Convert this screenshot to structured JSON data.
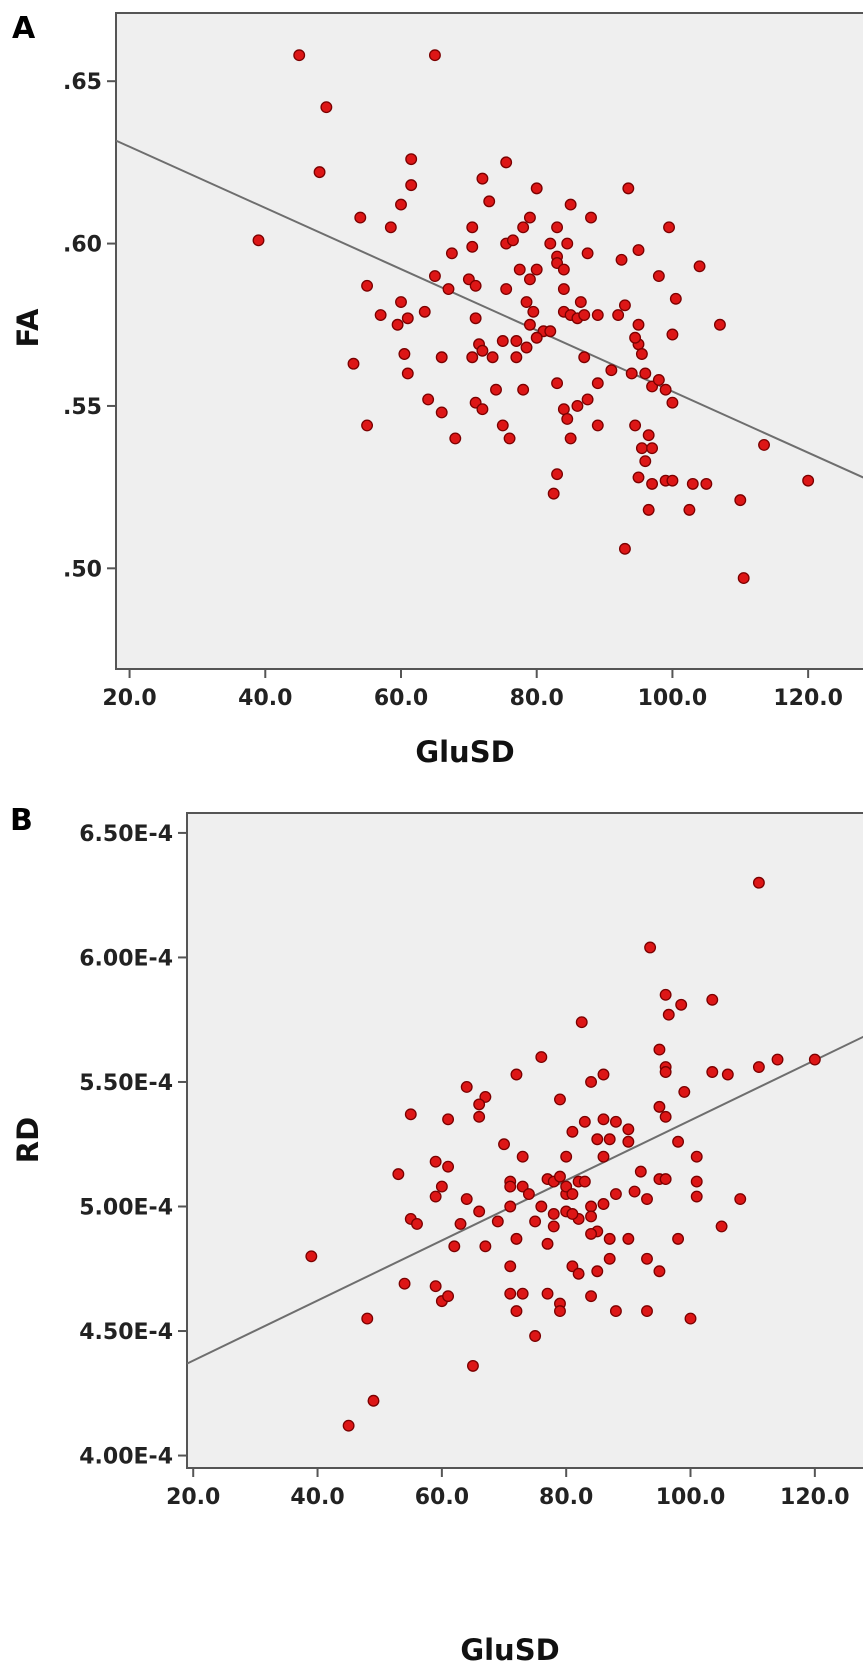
{
  "chart_data": [
    {
      "type": "scatter",
      "panel": "A",
      "xlabel": "GluSD",
      "ylabel": "FA",
      "xlim": [
        18,
        130
      ],
      "ylim": [
        0.469,
        0.671
      ],
      "xticks": [
        20,
        40,
        60,
        80,
        100,
        120
      ],
      "xtick_labels": [
        "20.0",
        "40.0",
        "60.0",
        "80.0",
        "100.0",
        "120.0"
      ],
      "yticks": [
        0.5,
        0.55,
        0.6,
        0.65
      ],
      "ytick_labels": [
        ".50",
        ".55",
        ".60",
        ".65"
      ],
      "fit_line": [
        [
          18,
          0.6317
        ],
        [
          130,
          0.5262
        ]
      ],
      "points": [
        [
          45,
          0.658
        ],
        [
          65,
          0.658
        ],
        [
          49,
          0.642
        ],
        [
          48,
          0.622
        ],
        [
          39,
          0.601
        ],
        [
          61.5,
          0.626
        ],
        [
          61.5,
          0.618
        ],
        [
          54,
          0.608
        ],
        [
          58.5,
          0.605
        ],
        [
          60,
          0.612
        ],
        [
          65,
          0.59
        ],
        [
          67.5,
          0.597
        ],
        [
          55,
          0.587
        ],
        [
          67,
          0.586
        ],
        [
          60,
          0.582
        ],
        [
          59.5,
          0.575
        ],
        [
          57,
          0.578
        ],
        [
          61,
          0.577
        ],
        [
          63.5,
          0.579
        ],
        [
          53,
          0.563
        ],
        [
          60.5,
          0.566
        ],
        [
          61,
          0.56
        ],
        [
          66,
          0.565
        ],
        [
          64,
          0.552
        ],
        [
          66,
          0.548
        ],
        [
          68,
          0.54
        ],
        [
          55,
          0.544
        ],
        [
          72,
          0.62
        ],
        [
          73,
          0.613
        ],
        [
          75.5,
          0.625
        ],
        [
          79,
          0.608
        ],
        [
          80,
          0.617
        ],
        [
          85,
          0.612
        ],
        [
          70.5,
          0.605
        ],
        [
          70.5,
          0.599
        ],
        [
          75.5,
          0.6
        ],
        [
          76.5,
          0.601
        ],
        [
          78,
          0.605
        ],
        [
          82,
          0.6
        ],
        [
          83,
          0.605
        ],
        [
          84.5,
          0.6
        ],
        [
          83,
          0.596
        ],
        [
          70,
          0.589
        ],
        [
          71,
          0.587
        ],
        [
          75.5,
          0.586
        ],
        [
          77.5,
          0.592
        ],
        [
          79,
          0.589
        ],
        [
          80,
          0.592
        ],
        [
          83,
          0.594
        ],
        [
          84,
          0.592
        ],
        [
          84,
          0.586
        ],
        [
          86.5,
          0.582
        ],
        [
          79.5,
          0.579
        ],
        [
          81,
          0.573
        ],
        [
          78.5,
          0.582
        ],
        [
          82,
          0.573
        ],
        [
          84,
          0.579
        ],
        [
          85,
          0.578
        ],
        [
          86,
          0.577
        ],
        [
          87,
          0.578
        ],
        [
          89,
          0.578
        ],
        [
          92,
          0.578
        ],
        [
          71,
          0.577
        ],
        [
          71.5,
          0.569
        ],
        [
          72,
          0.567
        ],
        [
          70.5,
          0.565
        ],
        [
          73.5,
          0.565
        ],
        [
          75,
          0.57
        ],
        [
          77,
          0.57
        ],
        [
          77,
          0.565
        ],
        [
          78.5,
          0.568
        ],
        [
          79,
          0.575
        ],
        [
          80,
          0.571
        ],
        [
          87.5,
          0.597
        ],
        [
          88,
          0.608
        ],
        [
          93.5,
          0.617
        ],
        [
          92.5,
          0.595
        ],
        [
          95,
          0.598
        ],
        [
          99.5,
          0.605
        ],
        [
          98,
          0.59
        ],
        [
          104,
          0.593
        ],
        [
          100.5,
          0.583
        ],
        [
          93,
          0.581
        ],
        [
          95,
          0.575
        ],
        [
          95,
          0.569
        ],
        [
          94.5,
          0.571
        ],
        [
          95.5,
          0.566
        ],
        [
          100,
          0.572
        ],
        [
          107,
          0.575
        ],
        [
          87,
          0.565
        ],
        [
          94,
          0.56
        ],
        [
          96,
          0.56
        ],
        [
          97,
          0.556
        ],
        [
          98,
          0.558
        ],
        [
          99,
          0.555
        ],
        [
          100,
          0.551
        ],
        [
          91,
          0.561
        ],
        [
          89,
          0.557
        ],
        [
          87.5,
          0.552
        ],
        [
          86,
          0.55
        ],
        [
          84,
          0.549
        ],
        [
          84.5,
          0.546
        ],
        [
          83,
          0.557
        ],
        [
          74,
          0.555
        ],
        [
          78,
          0.555
        ],
        [
          71,
          0.551
        ],
        [
          72,
          0.549
        ],
        [
          75,
          0.544
        ],
        [
          76,
          0.54
        ],
        [
          85,
          0.54
        ],
        [
          89,
          0.544
        ],
        [
          94.5,
          0.544
        ],
        [
          95.5,
          0.537
        ],
        [
          96.5,
          0.541
        ],
        [
          97,
          0.537
        ],
        [
          96,
          0.533
        ],
        [
          83,
          0.529
        ],
        [
          82.5,
          0.523
        ],
        [
          95,
          0.528
        ],
        [
          97,
          0.526
        ],
        [
          99,
          0.527
        ],
        [
          100,
          0.527
        ],
        [
          103,
          0.526
        ],
        [
          105,
          0.526
        ],
        [
          96.5,
          0.518
        ],
        [
          102.5,
          0.518
        ],
        [
          113.5,
          0.538
        ],
        [
          110,
          0.521
        ],
        [
          120,
          0.527
        ],
        [
          93,
          0.506
        ],
        [
          110.5,
          0.497
        ]
      ]
    },
    {
      "type": "scatter",
      "panel": "B",
      "xlabel": "GluSD",
      "ylabel": "RD",
      "xlim": [
        19,
        130
      ],
      "ylim": [
        0.000395,
        0.000658
      ],
      "xticks": [
        20,
        40,
        60,
        80,
        100,
        120
      ],
      "xtick_labels": [
        "20.0",
        "40.0",
        "60.0",
        "80.0",
        "100.0",
        "120.0"
      ],
      "yticks": [
        0.0004,
        0.00045,
        0.0005,
        0.00055,
        0.0006,
        0.00065
      ],
      "ytick_labels": [
        "4.00E-4",
        "4.50E-4",
        "5.00E-4",
        "5.50E-4",
        "6.00E-4",
        "6.50E-4"
      ],
      "fit_line": [
        [
          19,
          0.0004369
        ],
        [
          130,
          0.0005708
        ]
      ],
      "points": [
        [
          111,
          0.00063
        ],
        [
          93.5,
          0.000604
        ],
        [
          96,
          0.000585
        ],
        [
          96.5,
          0.000577
        ],
        [
          98.5,
          0.000581
        ],
        [
          103.5,
          0.000583
        ],
        [
          82.5,
          0.000574
        ],
        [
          76,
          0.00056
        ],
        [
          95,
          0.000563
        ],
        [
          96,
          0.000556
        ],
        [
          96,
          0.000554
        ],
        [
          103.5,
          0.000554
        ],
        [
          106,
          0.000553
        ],
        [
          111,
          0.000556
        ],
        [
          114,
          0.000559
        ],
        [
          120,
          0.000559
        ],
        [
          72,
          0.000553
        ],
        [
          64,
          0.000548
        ],
        [
          67,
          0.000544
        ],
        [
          66,
          0.000541
        ],
        [
          79,
          0.000543
        ],
        [
          84,
          0.00055
        ],
        [
          86,
          0.000553
        ],
        [
          55,
          0.000537
        ],
        [
          61,
          0.000535
        ],
        [
          66,
          0.000536
        ],
        [
          83,
          0.000534
        ],
        [
          86,
          0.000535
        ],
        [
          88,
          0.000534
        ],
        [
          90,
          0.000531
        ],
        [
          90,
          0.000526
        ],
        [
          95,
          0.00054
        ],
        [
          96,
          0.000536
        ],
        [
          98,
          0.000526
        ],
        [
          99,
          0.000546
        ],
        [
          59,
          0.000518
        ],
        [
          61,
          0.000516
        ],
        [
          53,
          0.000513
        ],
        [
          60,
          0.000508
        ],
        [
          59,
          0.000504
        ],
        [
          70,
          0.000525
        ],
        [
          73,
          0.00052
        ],
        [
          80,
          0.00052
        ],
        [
          81,
          0.00053
        ],
        [
          85,
          0.000527
        ],
        [
          86,
          0.00052
        ],
        [
          87,
          0.000527
        ],
        [
          92,
          0.000514
        ],
        [
          95,
          0.000511
        ],
        [
          96,
          0.000511
        ],
        [
          101,
          0.00052
        ],
        [
          101,
          0.00051
        ],
        [
          101,
          0.000504
        ],
        [
          71,
          0.00051
        ],
        [
          71,
          0.000508
        ],
        [
          73,
          0.000508
        ],
        [
          74,
          0.000505
        ],
        [
          77,
          0.000511
        ],
        [
          78,
          0.00051
        ],
        [
          79,
          0.000512
        ],
        [
          80,
          0.000505
        ],
        [
          80,
          0.000508
        ],
        [
          81,
          0.000505
        ],
        [
          82,
          0.00051
        ],
        [
          83,
          0.00051
        ],
        [
          71,
          0.0005
        ],
        [
          76,
          0.0005
        ],
        [
          78,
          0.000497
        ],
        [
          80,
          0.000498
        ],
        [
          82,
          0.000495
        ],
        [
          84,
          0.0005
        ],
        [
          86,
          0.000501
        ],
        [
          88,
          0.000505
        ],
        [
          91,
          0.000506
        ],
        [
          93,
          0.000503
        ],
        [
          55,
          0.000495
        ],
        [
          56,
          0.000493
        ],
        [
          63,
          0.000493
        ],
        [
          64,
          0.000503
        ],
        [
          66,
          0.000498
        ],
        [
          69,
          0.000494
        ],
        [
          75,
          0.000494
        ],
        [
          78,
          0.000492
        ],
        [
          81,
          0.000497
        ],
        [
          84,
          0.000496
        ],
        [
          85,
          0.00049
        ],
        [
          87,
          0.000487
        ],
        [
          90,
          0.000487
        ],
        [
          98,
          0.000487
        ],
        [
          105,
          0.000492
        ],
        [
          108,
          0.000503
        ],
        [
          62,
          0.000484
        ],
        [
          67,
          0.000484
        ],
        [
          72,
          0.000487
        ],
        [
          77,
          0.000485
        ],
        [
          84,
          0.000489
        ],
        [
          71,
          0.000476
        ],
        [
          81,
          0.000476
        ],
        [
          82,
          0.000473
        ],
        [
          85,
          0.000474
        ],
        [
          87,
          0.000479
        ],
        [
          93,
          0.000479
        ],
        [
          95,
          0.000474
        ],
        [
          54,
          0.000469
        ],
        [
          59,
          0.000468
        ],
        [
          60,
          0.000462
        ],
        [
          61,
          0.000464
        ],
        [
          71,
          0.000465
        ],
        [
          73,
          0.000465
        ],
        [
          77,
          0.000465
        ],
        [
          79,
          0.000461
        ],
        [
          79,
          0.000458
        ],
        [
          84,
          0.000464
        ],
        [
          88,
          0.000458
        ],
        [
          93,
          0.000458
        ],
        [
          100,
          0.000455
        ],
        [
          72,
          0.000458
        ],
        [
          75,
          0.000448
        ],
        [
          48,
          0.000455
        ],
        [
          39,
          0.00048
        ],
        [
          65,
          0.000436
        ],
        [
          49,
          0.000422
        ],
        [
          45,
          0.000412
        ]
      ]
    }
  ],
  "panels": {
    "a": {
      "letter": "A",
      "xlabel": "GluSD",
      "ylabel": "FA"
    },
    "b": {
      "letter": "B",
      "xlabel": "GluSD",
      "ylabel": "RD"
    }
  },
  "colors": {
    "marker_fill": "#dd1616",
    "marker_stroke": "#7a0000",
    "plot_background": "#efefef",
    "fit_line": "#6e6e6e"
  }
}
